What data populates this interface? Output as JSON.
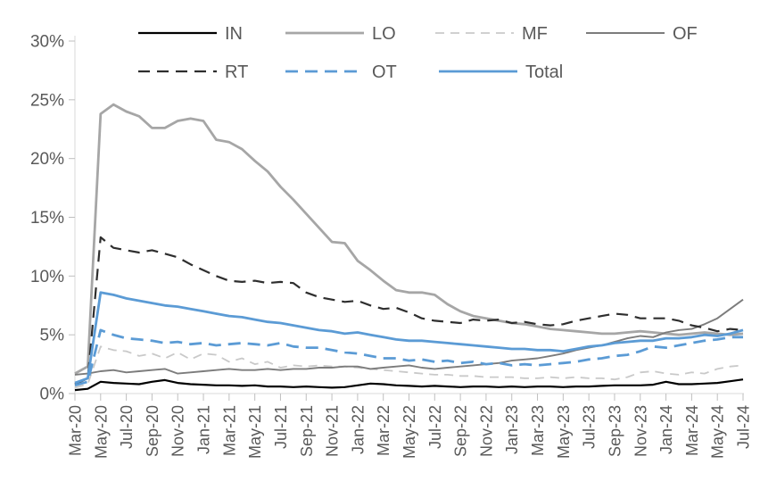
{
  "chart_data": {
    "type": "line",
    "title": "",
    "xlabel": "",
    "ylabel": "",
    "grid": false,
    "legend_position": "top",
    "ylim": [
      0,
      30
    ],
    "y_ticks": [
      0,
      5,
      10,
      15,
      20,
      25,
      30
    ],
    "y_tick_labels": [
      "0%",
      "5%",
      "10%",
      "15%",
      "20%",
      "25%",
      "30%"
    ],
    "x_tick_every": 2,
    "x_tick_labels": [
      "Mar-20",
      "May-20",
      "Jul-20",
      "Sep-20",
      "Nov-20",
      "Jan-21",
      "Mar-21",
      "May-21",
      "Jul-21",
      "Sep-21",
      "Nov-21",
      "Jan-22",
      "Mar-22",
      "May-22",
      "Jul-22",
      "Sep-22",
      "Nov-22",
      "Jan-23",
      "Mar-23",
      "May-23",
      "Jul-23",
      "Sep-23",
      "Nov-23",
      "Jan-24",
      "Mar-24",
      "May-24",
      "Jul-24"
    ],
    "x": [
      "Mar-20",
      "Apr-20",
      "May-20",
      "Jun-20",
      "Jul-20",
      "Aug-20",
      "Sep-20",
      "Oct-20",
      "Nov-20",
      "Dec-20",
      "Jan-21",
      "Feb-21",
      "Mar-21",
      "Apr-21",
      "May-21",
      "Jun-21",
      "Jul-21",
      "Aug-21",
      "Sep-21",
      "Oct-21",
      "Nov-21",
      "Dec-21",
      "Jan-22",
      "Feb-22",
      "Mar-22",
      "Apr-22",
      "May-22",
      "Jun-22",
      "Jul-22",
      "Aug-22",
      "Sep-22",
      "Oct-22",
      "Nov-22",
      "Dec-22",
      "Jan-23",
      "Feb-23",
      "Mar-23",
      "Apr-23",
      "May-23",
      "Jun-23",
      "Jul-23",
      "Aug-23",
      "Sep-23",
      "Oct-23",
      "Nov-23",
      "Dec-23",
      "Jan-24",
      "Feb-24",
      "Mar-24",
      "Apr-24",
      "May-24",
      "Jun-24",
      "Jul-24"
    ],
    "axis_color": "#D9D9D9",
    "tick_color": "#BFBFBF",
    "label_color": "#595959",
    "series": [
      {
        "name": "IN",
        "color": "#000000",
        "style": "solid",
        "width": 2.2,
        "values": [
          0.3,
          0.4,
          1.0,
          0.9,
          0.85,
          0.8,
          1.0,
          1.15,
          0.9,
          0.8,
          0.75,
          0.7,
          0.7,
          0.65,
          0.7,
          0.6,
          0.6,
          0.55,
          0.6,
          0.55,
          0.5,
          0.55,
          0.7,
          0.85,
          0.8,
          0.7,
          0.65,
          0.6,
          0.65,
          0.6,
          0.55,
          0.6,
          0.6,
          0.55,
          0.6,
          0.55,
          0.6,
          0.6,
          0.55,
          0.6,
          0.6,
          0.65,
          0.7,
          0.7,
          0.7,
          0.75,
          1.0,
          0.8,
          0.8,
          0.85,
          0.9,
          1.05,
          1.2
        ]
      },
      {
        "name": "LO",
        "color": "#A6A6A6",
        "style": "solid",
        "width": 2.8,
        "values": [
          1.7,
          2.3,
          23.8,
          24.6,
          24.0,
          23.6,
          22.6,
          22.6,
          23.2,
          23.4,
          23.2,
          21.6,
          21.4,
          20.8,
          19.8,
          18.9,
          17.6,
          16.5,
          15.3,
          14.1,
          12.9,
          12.8,
          11.3,
          10.5,
          9.6,
          8.8,
          8.6,
          8.6,
          8.4,
          7.6,
          7.0,
          6.6,
          6.4,
          6.2,
          6.0,
          5.9,
          5.7,
          5.5,
          5.4,
          5.3,
          5.2,
          5.1,
          5.1,
          5.2,
          5.3,
          5.2,
          5.1,
          5.0,
          5.1,
          5.2,
          5.1,
          5.0,
          5.1
        ]
      },
      {
        "name": "MF",
        "color": "#C9C9C9",
        "style": "dashed",
        "dash": "10 7",
        "width": 1.8,
        "values": [
          0.5,
          0.8,
          4.0,
          3.7,
          3.6,
          3.2,
          3.4,
          3.0,
          3.5,
          2.9,
          3.4,
          3.3,
          2.7,
          3.0,
          2.5,
          2.7,
          2.2,
          2.4,
          2.3,
          2.4,
          2.3,
          2.3,
          2.2,
          2.1,
          2.0,
          1.9,
          1.8,
          1.7,
          1.6,
          1.6,
          1.5,
          1.5,
          1.4,
          1.4,
          1.4,
          1.3,
          1.3,
          1.4,
          1.3,
          1.4,
          1.3,
          1.3,
          1.2,
          1.4,
          1.8,
          1.9,
          1.7,
          1.6,
          1.8,
          1.7,
          2.1,
          2.3,
          2.4
        ]
      },
      {
        "name": "OF",
        "color": "#7C7C7C",
        "style": "solid",
        "width": 1.9,
        "values": [
          1.6,
          1.7,
          1.9,
          2.0,
          1.8,
          1.9,
          2.0,
          2.1,
          1.7,
          1.8,
          1.9,
          2.0,
          2.1,
          2.0,
          2.0,
          2.1,
          2.0,
          2.1,
          2.1,
          2.2,
          2.2,
          2.3,
          2.3,
          2.1,
          2.2,
          2.3,
          2.4,
          2.2,
          2.1,
          2.2,
          2.3,
          2.4,
          2.5,
          2.6,
          2.8,
          2.9,
          3.0,
          3.2,
          3.4,
          3.7,
          3.9,
          4.1,
          4.4,
          4.7,
          4.9,
          4.8,
          5.2,
          5.4,
          5.5,
          5.9,
          6.4,
          7.2,
          8.0
        ]
      },
      {
        "name": "RT",
        "color": "#2E2E2E",
        "style": "dashed",
        "dash": "13 8",
        "width": 2.2,
        "values": [
          0.8,
          1.3,
          13.3,
          12.4,
          12.2,
          12.0,
          12.2,
          11.9,
          11.6,
          11.0,
          10.5,
          10.0,
          9.6,
          9.5,
          9.6,
          9.4,
          9.5,
          9.4,
          8.6,
          8.2,
          8.0,
          7.8,
          7.9,
          7.5,
          7.2,
          7.3,
          6.9,
          6.4,
          6.2,
          6.1,
          6.0,
          6.3,
          6.2,
          6.3,
          6.0,
          6.1,
          5.9,
          5.8,
          5.9,
          6.2,
          6.4,
          6.6,
          6.8,
          6.7,
          6.4,
          6.4,
          6.4,
          6.2,
          5.8,
          5.6,
          5.3,
          5.5,
          5.4
        ]
      },
      {
        "name": "OT",
        "color": "#5B9BD5",
        "style": "dashed",
        "dash": "14 8",
        "width": 2.8,
        "values": [
          0.7,
          1.0,
          5.4,
          5.0,
          4.7,
          4.6,
          4.5,
          4.3,
          4.4,
          4.2,
          4.3,
          4.1,
          4.2,
          4.3,
          4.2,
          4.1,
          4.3,
          4.0,
          3.9,
          3.9,
          3.7,
          3.5,
          3.4,
          3.2,
          3.0,
          3.0,
          2.8,
          2.9,
          2.7,
          2.8,
          2.6,
          2.7,
          2.5,
          2.6,
          2.4,
          2.5,
          2.4,
          2.5,
          2.6,
          2.7,
          2.9,
          3.0,
          3.2,
          3.3,
          3.6,
          4.0,
          3.9,
          4.1,
          4.3,
          4.5,
          4.6,
          4.8,
          4.8
        ]
      },
      {
        "name": "Total",
        "color": "#5B9BD5",
        "style": "solid",
        "width": 2.8,
        "values": [
          0.9,
          1.3,
          8.6,
          8.4,
          8.1,
          7.9,
          7.7,
          7.5,
          7.4,
          7.2,
          7.0,
          6.8,
          6.6,
          6.5,
          6.3,
          6.1,
          6.0,
          5.8,
          5.6,
          5.4,
          5.3,
          5.1,
          5.2,
          5.0,
          4.8,
          4.6,
          4.5,
          4.5,
          4.4,
          4.3,
          4.2,
          4.1,
          4.0,
          3.9,
          3.8,
          3.8,
          3.7,
          3.7,
          3.6,
          3.8,
          4.0,
          4.1,
          4.3,
          4.4,
          4.5,
          4.5,
          4.7,
          4.7,
          4.8,
          5.0,
          4.9,
          5.1,
          5.4
        ]
      }
    ],
    "legend_rows": [
      [
        "IN",
        "LO",
        "MF",
        "OF"
      ],
      [
        "RT",
        "OT",
        "Total"
      ]
    ]
  }
}
